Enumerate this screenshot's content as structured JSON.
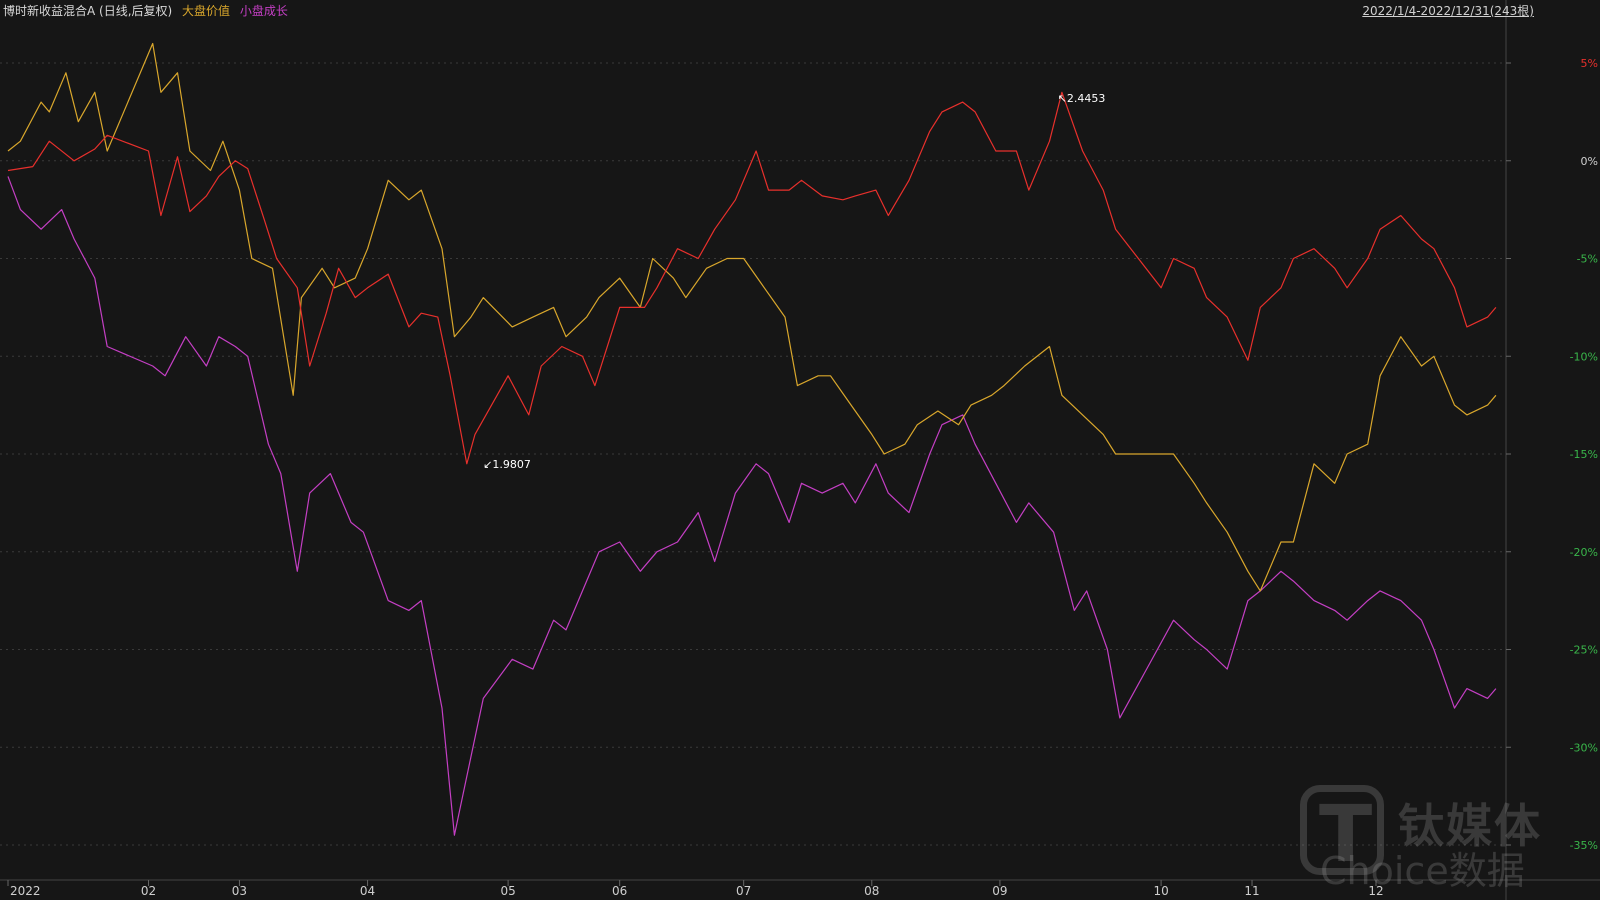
{
  "header": {
    "fund_name": "博时新收益混合A (日线,后复权)",
    "benchmark_large_value": "大盘价值",
    "benchmark_small_growth": "小盘成长",
    "range": "2022/1/4-2022/12/31(243根)"
  },
  "watermark": {
    "brand": "钛媒体",
    "sub": "Choice数据"
  },
  "colors": {
    "background": "#161616",
    "fund": "#e8302c",
    "large_value": "#d9a72c",
    "small_growth": "#c43fc4",
    "axis_up": "#e8302c",
    "axis_down": "#39b54a",
    "grid": "#3a3a3a"
  },
  "chart_data": {
    "type": "line",
    "title": "",
    "xlabel": "",
    "ylabel": "",
    "ylim": [
      -35,
      5
    ],
    "y_unit": "%",
    "grid": true,
    "y_ticks": [
      5,
      0,
      -5,
      -10,
      -15,
      -20,
      -25,
      -30,
      -35
    ],
    "y_tick_labels": [
      "5%",
      "0%",
      "-5%",
      "-10%",
      "-15%",
      "-20%",
      "-25%",
      "-30%",
      "-35%"
    ],
    "x_range": [
      "2022-01-04",
      "2022-12-31"
    ],
    "x_ticks": [
      {
        "label": "2022",
        "date": "2022-01-04"
      },
      {
        "label": "02",
        "date": "2022-02-07"
      },
      {
        "label": "03",
        "date": "2022-03-01"
      },
      {
        "label": "04",
        "date": "2022-04-01"
      },
      {
        "label": "05",
        "date": "2022-05-05"
      },
      {
        "label": "06",
        "date": "2022-06-01"
      },
      {
        "label": "07",
        "date": "2022-07-01"
      },
      {
        "label": "08",
        "date": "2022-08-01"
      },
      {
        "label": "09",
        "date": "2022-09-01"
      },
      {
        "label": "10",
        "date": "2022-10-10"
      },
      {
        "label": "11",
        "date": "2022-11-01"
      },
      {
        "label": "12",
        "date": "2022-12-01"
      }
    ],
    "series": [
      {
        "name": "博时新收益混合A (日线,后复权)",
        "color": "#e8302c",
        "x": [
          "2022-01-04",
          "2022-01-10",
          "2022-01-14",
          "2022-01-20",
          "2022-01-25",
          "2022-01-28",
          "2022-02-07",
          "2022-02-10",
          "2022-02-14",
          "2022-02-17",
          "2022-02-21",
          "2022-02-24",
          "2022-02-28",
          "2022-03-03",
          "2022-03-07",
          "2022-03-10",
          "2022-03-15",
          "2022-03-18",
          "2022-03-22",
          "2022-03-25",
          "2022-03-29",
          "2022-04-01",
          "2022-04-06",
          "2022-04-11",
          "2022-04-14",
          "2022-04-18",
          "2022-04-21",
          "2022-04-25",
          "2022-04-27",
          "2022-05-05",
          "2022-05-10",
          "2022-05-13",
          "2022-05-18",
          "2022-05-23",
          "2022-05-26",
          "2022-06-01",
          "2022-06-07",
          "2022-06-10",
          "2022-06-15",
          "2022-06-20",
          "2022-06-24",
          "2022-06-29",
          "2022-07-04",
          "2022-07-07",
          "2022-07-12",
          "2022-07-15",
          "2022-07-20",
          "2022-07-25",
          "2022-07-28",
          "2022-08-02",
          "2022-08-05",
          "2022-08-10",
          "2022-08-15",
          "2022-08-18",
          "2022-08-23",
          "2022-08-26",
          "2022-08-31",
          "2022-09-05",
          "2022-09-08",
          "2022-09-13",
          "2022-09-16",
          "2022-09-21",
          "2022-09-26",
          "2022-09-29",
          "2022-10-10",
          "2022-10-13",
          "2022-10-18",
          "2022-10-21",
          "2022-10-26",
          "2022-10-31",
          "2022-11-03",
          "2022-11-08",
          "2022-11-11",
          "2022-11-16",
          "2022-11-21",
          "2022-11-24",
          "2022-11-29",
          "2022-12-02",
          "2022-12-07",
          "2022-12-12",
          "2022-12-15",
          "2022-12-20",
          "2022-12-23",
          "2022-12-28",
          "2022-12-30"
        ],
        "values": [
          -0.5,
          -0.3,
          1.0,
          0.0,
          0.6,
          1.3,
          0.5,
          -2.8,
          0.2,
          -2.6,
          -1.8,
          -0.8,
          0.0,
          -0.4,
          -3.0,
          -5.0,
          -6.5,
          -10.5,
          -7.8,
          -5.5,
          -7.0,
          -6.5,
          -5.8,
          -8.5,
          -7.8,
          -8.0,
          -11.0,
          -15.5,
          -14.0,
          -11.0,
          -13.0,
          -10.5,
          -9.5,
          -10.0,
          -11.5,
          -7.5,
          -7.5,
          -6.5,
          -4.5,
          -5.0,
          -3.5,
          -2.0,
          0.5,
          -1.5,
          -1.5,
          -1.0,
          -1.8,
          -2.0,
          -1.8,
          -1.5,
          -2.8,
          -1.0,
          1.5,
          2.5,
          3.0,
          2.5,
          0.5,
          0.5,
          -1.5,
          1.0,
          3.5,
          0.5,
          -1.5,
          -3.5,
          -6.5,
          -5.0,
          -5.5,
          -7.0,
          -8.0,
          -10.2,
          -7.5,
          -6.5,
          -5.0,
          -4.5,
          -5.5,
          -6.5,
          -5.0,
          -3.5,
          -2.8,
          -4.0,
          -4.5,
          -6.5,
          -8.5,
          -8.0,
          -7.5
        ]
      },
      {
        "name": "大盘价值",
        "color": "#d9a72c",
        "x": [
          "2022-01-04",
          "2022-01-07",
          "2022-01-12",
          "2022-01-14",
          "2022-01-18",
          "2022-01-21",
          "2022-01-25",
          "2022-01-28",
          "2022-02-08",
          "2022-02-10",
          "2022-02-14",
          "2022-02-17",
          "2022-02-22",
          "2022-02-25",
          "2022-03-01",
          "2022-03-04",
          "2022-03-09",
          "2022-03-14",
          "2022-03-16",
          "2022-03-21",
          "2022-03-24",
          "2022-03-29",
          "2022-04-01",
          "2022-04-06",
          "2022-04-11",
          "2022-04-14",
          "2022-04-19",
          "2022-04-22",
          "2022-04-26",
          "2022-04-29",
          "2022-05-06",
          "2022-05-11",
          "2022-05-16",
          "2022-05-19",
          "2022-05-24",
          "2022-05-27",
          "2022-06-01",
          "2022-06-06",
          "2022-06-09",
          "2022-06-14",
          "2022-06-17",
          "2022-06-22",
          "2022-06-27",
          "2022-07-01",
          "2022-07-06",
          "2022-07-11",
          "2022-07-14",
          "2022-07-19",
          "2022-07-22",
          "2022-07-27",
          "2022-08-01",
          "2022-08-04",
          "2022-08-09",
          "2022-08-12",
          "2022-08-17",
          "2022-08-22",
          "2022-08-25",
          "2022-08-30",
          "2022-09-02",
          "2022-09-07",
          "2022-09-13",
          "2022-09-16",
          "2022-09-21",
          "2022-09-26",
          "2022-09-29",
          "2022-10-13",
          "2022-10-18",
          "2022-10-21",
          "2022-10-26",
          "2022-10-31",
          "2022-11-03",
          "2022-11-08",
          "2022-11-11",
          "2022-11-16",
          "2022-11-21",
          "2022-11-24",
          "2022-11-29",
          "2022-12-02",
          "2022-12-07",
          "2022-12-12",
          "2022-12-15",
          "2022-12-20",
          "2022-12-23",
          "2022-12-28",
          "2022-12-30"
        ],
        "values": [
          0.5,
          1.0,
          3.0,
          2.5,
          4.5,
          2.0,
          3.5,
          0.5,
          6.0,
          3.5,
          4.5,
          0.5,
          -0.5,
          1.0,
          -1.5,
          -5.0,
          -5.5,
          -12.0,
          -7.0,
          -5.5,
          -6.5,
          -6.0,
          -4.5,
          -1.0,
          -2.0,
          -1.5,
          -4.5,
          -9.0,
          -8.0,
          -7.0,
          -8.5,
          -8.0,
          -7.5,
          -9.0,
          -8.0,
          -7.0,
          -6.0,
          -7.5,
          -5.0,
          -6.0,
          -7.0,
          -5.5,
          -5.0,
          -5.0,
          -6.5,
          -8.0,
          -11.5,
          -11.0,
          -11.0,
          -12.5,
          -14.0,
          -15.0,
          -14.5,
          -13.5,
          -12.8,
          -13.5,
          -12.5,
          -12.0,
          -11.5,
          -10.5,
          -9.5,
          -12.0,
          -13.0,
          -14.0,
          -15.0,
          -15.0,
          -16.5,
          -17.5,
          -19.0,
          -21.0,
          -22.0,
          -19.5,
          -19.5,
          -15.5,
          -16.5,
          -15.0,
          -14.5,
          -11.0,
          -9.0,
          -10.5,
          -10.0,
          -12.5,
          -13.0,
          -12.5,
          -12.0
        ]
      },
      {
        "name": "小盘成长",
        "color": "#c43fc4",
        "x": [
          "2022-01-04",
          "2022-01-07",
          "2022-01-12",
          "2022-01-17",
          "2022-01-20",
          "2022-01-25",
          "2022-01-28",
          "2022-02-08",
          "2022-02-11",
          "2022-02-16",
          "2022-02-21",
          "2022-02-24",
          "2022-02-28",
          "2022-03-03",
          "2022-03-08",
          "2022-03-11",
          "2022-03-15",
          "2022-03-18",
          "2022-03-23",
          "2022-03-28",
          "2022-03-31",
          "2022-04-06",
          "2022-04-11",
          "2022-04-14",
          "2022-04-19",
          "2022-04-22",
          "2022-04-26",
          "2022-04-29",
          "2022-05-06",
          "2022-05-11",
          "2022-05-16",
          "2022-05-19",
          "2022-05-24",
          "2022-05-27",
          "2022-06-01",
          "2022-06-06",
          "2022-06-10",
          "2022-06-15",
          "2022-06-20",
          "2022-06-24",
          "2022-06-29",
          "2022-07-04",
          "2022-07-07",
          "2022-07-12",
          "2022-07-15",
          "2022-07-20",
          "2022-07-25",
          "2022-07-28",
          "2022-08-02",
          "2022-08-05",
          "2022-08-10",
          "2022-08-15",
          "2022-08-18",
          "2022-08-23",
          "2022-08-26",
          "2022-08-31",
          "2022-09-05",
          "2022-09-08",
          "2022-09-14",
          "2022-09-19",
          "2022-09-22",
          "2022-09-27",
          "2022-09-30",
          "2022-10-13",
          "2022-10-18",
          "2022-10-21",
          "2022-10-26",
          "2022-10-31",
          "2022-11-03",
          "2022-11-08",
          "2022-11-11",
          "2022-11-16",
          "2022-11-21",
          "2022-11-24",
          "2022-11-29",
          "2022-12-02",
          "2022-12-07",
          "2022-12-12",
          "2022-12-15",
          "2022-12-20",
          "2022-12-23",
          "2022-12-28",
          "2022-12-30"
        ],
        "values": [
          -0.8,
          -2.5,
          -3.5,
          -2.5,
          -4.0,
          -6.0,
          -9.5,
          -10.5,
          -11.0,
          -9.0,
          -10.5,
          -9.0,
          -9.5,
          -10.0,
          -14.5,
          -16.0,
          -21.0,
          -17.0,
          -16.0,
          -18.5,
          -19.0,
          -22.5,
          -23.0,
          -22.5,
          -28.0,
          -34.5,
          -30.5,
          -27.5,
          -25.5,
          -26.0,
          -23.5,
          -24.0,
          -21.5,
          -20.0,
          -19.5,
          -21.0,
          -20.0,
          -19.5,
          -18.0,
          -20.5,
          -17.0,
          -15.5,
          -16.0,
          -18.5,
          -16.5,
          -17.0,
          -16.5,
          -17.5,
          -15.5,
          -17.0,
          -18.0,
          -15.0,
          -13.5,
          -13.0,
          -14.5,
          -16.5,
          -18.5,
          -17.5,
          -19.0,
          -23.0,
          -22.0,
          -25.0,
          -28.5,
          -23.5,
          -24.5,
          -25.0,
          -26.0,
          -22.5,
          -22.0,
          -21.0,
          -21.5,
          -22.5,
          -23.0,
          -23.5,
          -22.5,
          -22.0,
          -22.5,
          -23.5,
          -25.0,
          -28.0,
          -27.0,
          -27.5,
          -27.0
        ]
      }
    ],
    "annotations": [
      {
        "label": "2.4453",
        "x": "2022-09-14",
        "y": 3.2
      },
      {
        "label": "1.9807",
        "x": "2022-04-28",
        "y": -15.5
      }
    ]
  }
}
